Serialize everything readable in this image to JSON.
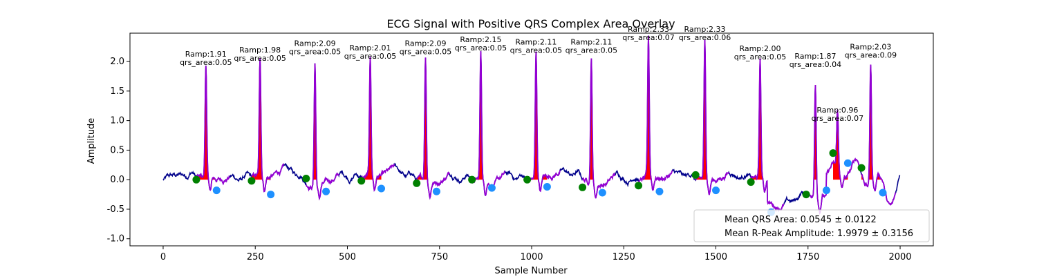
{
  "chart_data": {
    "type": "line",
    "title": "ECG Signal with Positive QRS Complex Area Overlay",
    "xlabel": "Sample Number",
    "ylabel": "Amplitude",
    "xlim": [
      -90,
      2090
    ],
    "ylim": [
      -1.12,
      2.48
    ],
    "xticks": [
      0,
      250,
      500,
      750,
      1000,
      1250,
      1500,
      1750,
      2000
    ],
    "yticks": [
      -1.0,
      -0.5,
      0.0,
      0.5,
      1.0,
      1.5,
      2.0
    ],
    "grid": false,
    "colors": {
      "signal": "#00008b",
      "qrs_segment": "#9400d3",
      "qrs_fill": "#ff0000",
      "onset_marker": "#008000",
      "offset_marker": "#1e90ff"
    },
    "r_peaks": [
      {
        "x": 116,
        "amp": 1.91,
        "area": 0.05,
        "label": "Ramp:1.91\nqrs_area:0.05"
      },
      {
        "x": 263,
        "amp": 1.98,
        "area": 0.05,
        "label": "Ramp:1.98\nqrs_area:0.05"
      },
      {
        "x": 412,
        "amp": 2.09,
        "area": 0.05,
        "label": "Ramp:2.09\nqrs_area:0.05"
      },
      {
        "x": 562,
        "amp": 2.01,
        "area": 0.05,
        "label": "Ramp:2.01\nqrs_area:0.05"
      },
      {
        "x": 712,
        "amp": 2.09,
        "area": 0.05,
        "label": "Ramp:2.09\nqrs_area:0.05"
      },
      {
        "x": 862,
        "amp": 2.15,
        "area": 0.05,
        "label": "Ramp:2.15\nqrs_area:0.05"
      },
      {
        "x": 1012,
        "amp": 2.11,
        "area": 0.05,
        "label": "Ramp:2.11\nqrs_area:0.05"
      },
      {
        "x": 1162,
        "amp": 2.11,
        "area": 0.05,
        "label": "Ramp:2.11\nqrs_area:0.05"
      },
      {
        "x": 1317,
        "amp": 2.33,
        "area": 0.07,
        "label": "Ramp:2.33\nqrs_area:0.07"
      },
      {
        "x": 1470,
        "amp": 2.33,
        "area": 0.06,
        "label": "Ramp:2.33\nqrs_area:0.06"
      },
      {
        "x": 1620,
        "amp": 2.0,
        "area": 0.05,
        "label": "Ramp:2.00\nqrs_area:0.05"
      },
      {
        "x": 1770,
        "amp": 1.87,
        "area": 0.04,
        "label": "Ramp:1.87\nqrs_area:0.04"
      },
      {
        "x": 1830,
        "amp": 0.96,
        "area": 0.07,
        "label": "Ramp:0.96\nqrs_area:0.07"
      },
      {
        "x": 1920,
        "amp": 2.03,
        "area": 0.09,
        "label": "Ramp:2.03\nqrs_area:0.09"
      }
    ],
    "onsets": [
      {
        "x": 90,
        "y": 0.0
      },
      {
        "x": 240,
        "y": -0.02
      },
      {
        "x": 388,
        "y": 0.02
      },
      {
        "x": 538,
        "y": -0.02
      },
      {
        "x": 688,
        "y": -0.06
      },
      {
        "x": 838,
        "y": 0.0
      },
      {
        "x": 988,
        "y": 0.0
      },
      {
        "x": 1138,
        "y": -0.13
      },
      {
        "x": 1290,
        "y": -0.1
      },
      {
        "x": 1445,
        "y": 0.08
      },
      {
        "x": 1595,
        "y": -0.04
      },
      {
        "x": 1745,
        "y": -0.25
      },
      {
        "x": 1818,
        "y": 0.45
      },
      {
        "x": 1895,
        "y": 0.2
      }
    ],
    "offsets": [
      {
        "x": 145,
        "y": -0.18
      },
      {
        "x": 292,
        "y": -0.25
      },
      {
        "x": 442,
        "y": -0.2
      },
      {
        "x": 592,
        "y": -0.15
      },
      {
        "x": 742,
        "y": -0.2
      },
      {
        "x": 892,
        "y": -0.14
      },
      {
        "x": 1042,
        "y": -0.12
      },
      {
        "x": 1192,
        "y": -0.22
      },
      {
        "x": 1347,
        "y": -0.2
      },
      {
        "x": 1500,
        "y": -0.18
      },
      {
        "x": 1650,
        "y": -0.55
      },
      {
        "x": 1800,
        "y": -0.18
      },
      {
        "x": 1858,
        "y": 0.28
      },
      {
        "x": 1953,
        "y": -0.22
      }
    ],
    "legend": {
      "position": "lower right",
      "entries": [
        "Mean QRS Area: 0.0545 ± 0.0122",
        "Mean R-Peak Amplitude: 1.9979 ± 0.3156"
      ]
    }
  }
}
